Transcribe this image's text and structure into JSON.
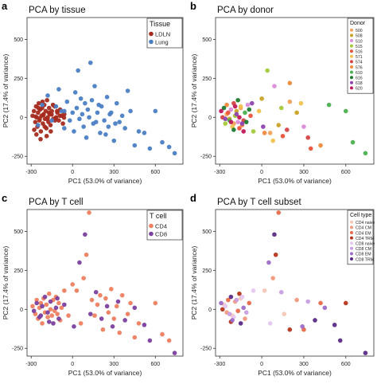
{
  "figure": {
    "panel_letters": [
      "a",
      "b",
      "c",
      "d"
    ]
  },
  "chart_data": [
    {
      "panel": "a",
      "type": "scatter",
      "title": "PCA by tissue",
      "xlabel": "PC1 (53.0% of variance)",
      "ylabel": "PC2 (17.4% of variance)",
      "xlim": [
        -330,
        800
      ],
      "ylim": [
        -300,
        640
      ],
      "xticks": [
        -300,
        0,
        300,
        600
      ],
      "yticks": [
        -250,
        0,
        250,
        500
      ],
      "grid": false,
      "legend": {
        "title": "Tissue",
        "placement": "top-right"
      },
      "series": [
        {
          "name": "LDLN",
          "color": "#a52a1e",
          "x": [
            -290,
            -280,
            -270,
            -265,
            -260,
            -255,
            -250,
            -245,
            -240,
            -235,
            -230,
            -225,
            -220,
            -215,
            -210,
            -205,
            -200,
            -195,
            -190,
            -185,
            -180,
            -175,
            -170,
            -165,
            -160,
            -150,
            -140,
            -130,
            -120,
            -110,
            -100,
            -90,
            -80,
            -70,
            -60,
            -278,
            -262,
            -248,
            -232,
            -218,
            -202,
            -188,
            -172,
            -158,
            -142,
            -128,
            -112,
            -268,
            -238,
            -212,
            -182,
            -152,
            -122,
            -92,
            -62
          ],
          "y": [
            10,
            40,
            -30,
            70,
            0,
            -60,
            30,
            90,
            -20,
            50,
            -90,
            10,
            60,
            -40,
            20,
            80,
            -10,
            40,
            -70,
            110,
            0,
            -30,
            60,
            20,
            -50,
            40,
            -10,
            70,
            0,
            30,
            -20,
            50,
            10,
            -40,
            20,
            -80,
            -110,
            60,
            -140,
            100,
            -60,
            -120,
            30,
            -90,
            80,
            -20,
            40,
            5,
            -8,
            15,
            -12,
            18,
            -5,
            10,
            -2
          ]
        },
        {
          "name": "Lung",
          "color": "#4a7ec4",
          "x": [
            -250,
            -220,
            -180,
            -150,
            -120,
            -80,
            -60,
            -40,
            -20,
            0,
            10,
            20,
            30,
            50,
            60,
            70,
            80,
            90,
            100,
            110,
            120,
            140,
            150,
            160,
            180,
            200,
            210,
            230,
            250,
            260,
            280,
            300,
            320,
            340,
            380,
            420,
            450,
            480,
            600,
            650,
            700,
            740,
            -100,
            -60,
            40,
            130,
            170,
            190,
            240,
            270,
            310,
            360,
            400,
            520,
            560
          ],
          "y": [
            -50,
            80,
            140,
            -20,
            70,
            40,
            -70,
            100,
            -20,
            30,
            -90,
            160,
            60,
            -10,
            120,
            20,
            -60,
            90,
            -130,
            50,
            0,
            110,
            -40,
            200,
            30,
            -100,
            70,
            -20,
            130,
            -60,
            30,
            -150,
            90,
            -30,
            -70,
            40,
            -180,
            -90,
            40,
            -160,
            -190,
            -230,
            180,
            40,
            300,
            350,
            -30,
            80,
            -110,
            20,
            -40,
            10,
            170,
            -100,
            -200
          ]
        }
      ]
    },
    {
      "panel": "b",
      "type": "scatter",
      "title": "PCA by donor",
      "xlabel": "PC1 (53.0% of variance)",
      "ylabel": "PC2 (17.4% of variance)",
      "xlim": [
        -330,
        800
      ],
      "ylim": [
        -300,
        640
      ],
      "xticks": [
        -300,
        0,
        300,
        600
      ],
      "yticks": [
        -250,
        0,
        250,
        500
      ],
      "grid": false,
      "legend": {
        "title": "Donor",
        "placement": "top-right"
      },
      "series": [
        {
          "name": "500",
          "color": "#f4a259",
          "x": [
            -250,
            -200,
            -150,
            60,
            200
          ],
          "y": [
            20,
            -40,
            60,
            -100,
            100
          ]
        },
        {
          "name": "508",
          "color": "#c9a227",
          "x": [
            -230,
            -180,
            0,
            120,
            250
          ],
          "y": [
            -10,
            40,
            120,
            -50,
            30
          ]
        },
        {
          "name": "510",
          "color": "#d98cd9",
          "x": [
            -220,
            -170,
            -100,
            90,
            300
          ],
          "y": [
            50,
            -30,
            80,
            200,
            -60
          ]
        },
        {
          "name": "515",
          "color": "#a3c93a",
          "x": [
            -260,
            -190,
            -60,
            40,
            140
          ],
          "y": [
            -40,
            10,
            -90,
            300,
            60
          ]
        },
        {
          "name": "516",
          "color": "#e8533c",
          "x": [
            -240,
            -160,
            -80,
            150,
            350
          ],
          "y": [
            30,
            -70,
            10,
            -120,
            -200
          ]
        },
        {
          "name": "571",
          "color": "#f2c14e",
          "x": [
            -210,
            -150,
            -20,
            80,
            280
          ],
          "y": [
            -60,
            70,
            40,
            -150,
            90
          ]
        },
        {
          "name": "574",
          "color": "#d64545",
          "x": [
            -280,
            -200,
            -130,
            180,
            330
          ],
          "y": [
            0,
            90,
            -20,
            -80,
            -130
          ]
        },
        {
          "name": "576",
          "color": "#f08a3c",
          "x": [
            -250,
            -140,
            20,
            200,
            420
          ],
          "y": [
            80,
            -50,
            -100,
            220,
            -180
          ]
        },
        {
          "name": "610",
          "color": "#4caf50",
          "x": [
            -230,
            -120,
            480,
            600,
            650,
            740
          ],
          "y": [
            -20,
            30,
            80,
            40,
            -160,
            -230
          ]
        },
        {
          "name": "616",
          "color": "#1e7b2e",
          "x": [
            -270,
            -200,
            -170,
            -110,
            -90
          ],
          "y": [
            60,
            -80,
            110,
            -30,
            50
          ]
        },
        {
          "name": "618",
          "color": "#8e44ad",
          "x": [
            -260,
            -180,
            -140,
            -70,
            10
          ],
          "y": [
            -10,
            20,
            -40,
            90,
            -60
          ]
        },
        {
          "name": "620",
          "color": "#c2185b",
          "x": [
            -290,
            -220,
            -190,
            -160,
            -130
          ],
          "y": [
            40,
            -30,
            70,
            0,
            -90
          ]
        }
      ]
    },
    {
      "panel": "c",
      "type": "scatter",
      "title": "PCA by T cell",
      "xlabel": "PC1 (53.0% of variance)",
      "ylabel": "PC2 (17.4% of variance)",
      "xlim": [
        -330,
        800
      ],
      "ylim": [
        -300,
        640
      ],
      "xticks": [
        -300,
        0,
        300,
        600
      ],
      "yticks": [
        -250,
        0,
        250,
        500
      ],
      "grid": false,
      "legend": {
        "title": "T cell",
        "placement": "top-right"
      },
      "series": [
        {
          "name": "CD4",
          "color": "#ef8060",
          "x": [
            -290,
            -270,
            -260,
            -250,
            -240,
            -230,
            -220,
            -210,
            -200,
            -190,
            -180,
            -170,
            -160,
            -150,
            -140,
            -130,
            -120,
            -110,
            -100,
            -90,
            -80,
            0,
            30,
            60,
            80,
            100,
            120,
            140,
            160,
            180,
            200,
            220,
            240,
            260,
            280,
            300,
            320,
            340,
            360,
            400,
            420,
            450,
            480,
            600,
            650,
            700,
            -60,
            -30
          ],
          "y": [
            20,
            -30,
            60,
            -60,
            10,
            40,
            -90,
            70,
            -20,
            30,
            -50,
            100,
            0,
            -40,
            60,
            -10,
            80,
            -30,
            40,
            -70,
            10,
            160,
            120,
            -90,
            200,
            350,
            620,
            60,
            -40,
            30,
            90,
            -130,
            70,
            -20,
            130,
            -60,
            20,
            -150,
            90,
            -30,
            40,
            -180,
            -90,
            40,
            -160,
            -200,
            120,
            -40
          ]
        },
        {
          "name": "CD8",
          "color": "#7b3fa0",
          "x": [
            -280,
            -260,
            -240,
            -220,
            -200,
            -180,
            -160,
            -140,
            -120,
            -100,
            -60,
            10,
            50,
            90,
            130,
            170,
            210,
            250,
            290,
            330,
            380,
            450,
            520,
            560,
            740,
            -230,
            -170,
            -110
          ],
          "y": [
            -10,
            40,
            -50,
            20,
            80,
            -20,
            50,
            -90,
            10,
            -60,
            30,
            -110,
            300,
            480,
            -30,
            110,
            -60,
            20,
            -110,
            50,
            -70,
            10,
            -100,
            -200,
            -280,
            -40,
            -80,
            70
          ]
        }
      ]
    },
    {
      "panel": "d",
      "type": "scatter",
      "title": "PCA by T cell subset",
      "xlabel": "PC1 (53.0% of variance)",
      "ylabel": "PC2 (17.4% of variance)",
      "xlim": [
        -330,
        800
      ],
      "ylim": [
        -300,
        640
      ],
      "xticks": [
        -300,
        0,
        300,
        600
      ],
      "yticks": [
        -250,
        0,
        250,
        500
      ],
      "grid": false,
      "legend": {
        "title": "Cell type",
        "placement": "top-right"
      },
      "series": [
        {
          "name": "CD4 naive",
          "color": "#f6c7b6",
          "x": [
            -270,
            -210,
            -150,
            20,
            160
          ],
          "y": [
            30,
            -40,
            70,
            120,
            -30
          ]
        },
        {
          "name": "CD4 CM",
          "color": "#f29a7e",
          "x": [
            -250,
            -190,
            -120,
            80,
            250
          ],
          "y": [
            -20,
            50,
            -60,
            200,
            60
          ]
        },
        {
          "name": "CD4 EM",
          "color": "#e86a4a",
          "x": [
            -240,
            -170,
            -90,
            120,
            300,
            420
          ],
          "y": [
            60,
            -10,
            40,
            620,
            -130,
            40
          ]
        },
        {
          "name": "CD4 TRM",
          "color": "#b5361e",
          "x": [
            -280,
            -220,
            -160,
            100,
            200,
            600
          ],
          "y": [
            0,
            -80,
            100,
            350,
            -130,
            40
          ]
        },
        {
          "name": "CD8 naive",
          "color": "#e4c8f0",
          "x": [
            -260,
            -200,
            -140,
            -60,
            60
          ],
          "y": [
            20,
            -50,
            80,
            120,
            -90
          ]
        },
        {
          "name": "CD8 CM",
          "color": "#c89ee0",
          "x": [
            -230,
            -180,
            -110,
            140,
            330
          ],
          "y": [
            -30,
            60,
            -20,
            110,
            50
          ]
        },
        {
          "name": "CD8 EM",
          "color": "#9c6cc8",
          "x": [
            -290,
            -210,
            -130,
            50,
            290,
            450
          ],
          "y": [
            40,
            -70,
            10,
            300,
            -110,
            10
          ]
        },
        {
          "name": "CD8 TRM",
          "color": "#5b2a86",
          "x": [
            -220,
            -150,
            90,
            380,
            520,
            560,
            740
          ],
          "y": [
            80,
            -90,
            480,
            -70,
            -100,
            -200,
            -280
          ]
        }
      ]
    }
  ]
}
